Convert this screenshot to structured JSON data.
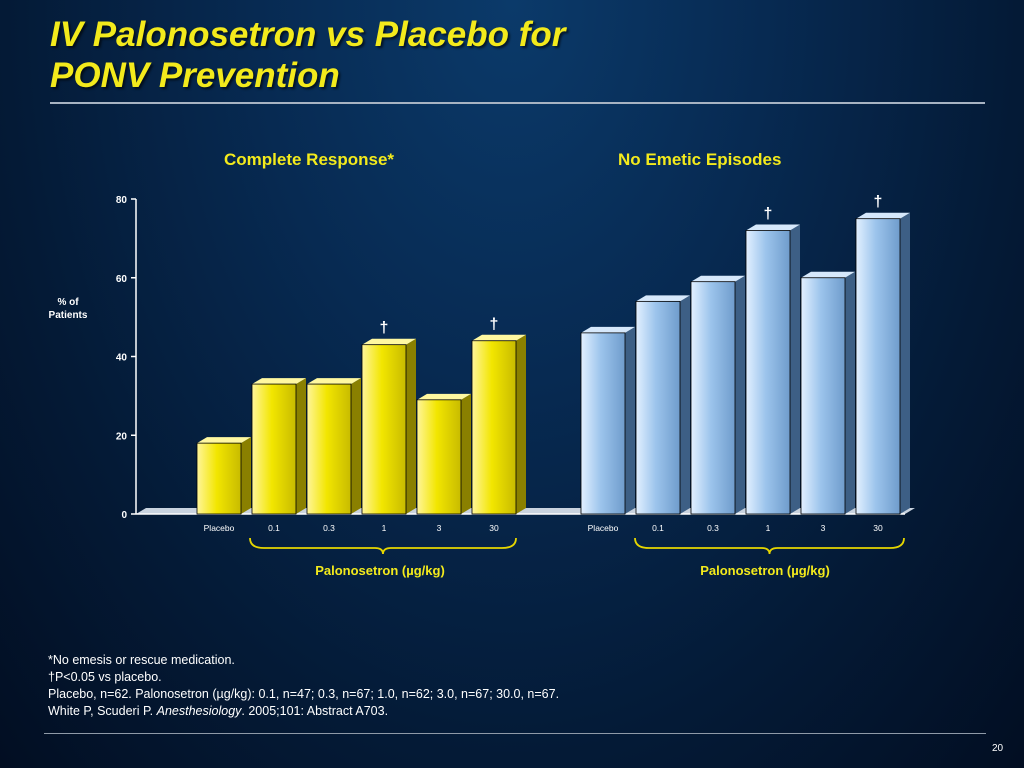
{
  "slide": {
    "title_line1": "IV Palonosetron vs Placebo for",
    "title_line2": "PONV Prevention",
    "page_number": "20"
  },
  "footnotes": {
    "line1": "*No emesis or rescue medication.",
    "line2": "†P<0.05 vs placebo.",
    "line3": "Placebo, n=62. Palonosetron (µg/kg): 0.1, n=47; 0.3, n=67; 1.0, n=62; 3.0, n=67; 30.0, n=67.",
    "line4_pre": "White P, Scuderi P. ",
    "line4_journal": "Anesthesiology",
    "line4_post": ". 2005;101: Abstract A703."
  },
  "colors": {
    "yellow_bar": "#f2e600",
    "blue_bar": "#9cc4ec",
    "title": "#f3ea1c"
  },
  "chart_data": {
    "type": "bar",
    "ylabel": "% of Patients",
    "ylim": [
      0,
      80
    ],
    "yticks": [
      "0",
      "20",
      "40",
      "60",
      "80"
    ],
    "grid": false,
    "panels": [
      {
        "title": "Complete Response*",
        "xlabel": "Palonosetron (µg/kg)",
        "categories": [
          "Placebo",
          "0.1",
          "0.3",
          "1",
          "3",
          "30"
        ],
        "values": [
          18,
          33,
          33,
          43,
          29,
          44
        ],
        "markers": [
          "",
          "",
          "",
          "†",
          "",
          "†"
        ],
        "color": "#f2e600"
      },
      {
        "title": "No Emetic Episodes",
        "xlabel": "Palonosetron (µg/kg)",
        "categories": [
          "Placebo",
          "0.1",
          "0.3",
          "1",
          "3",
          "30"
        ],
        "values": [
          46,
          54,
          59,
          72,
          60,
          75
        ],
        "markers": [
          "",
          "",
          "",
          "†",
          "",
          "†"
        ],
        "color": "#9cc4ec"
      }
    ]
  }
}
